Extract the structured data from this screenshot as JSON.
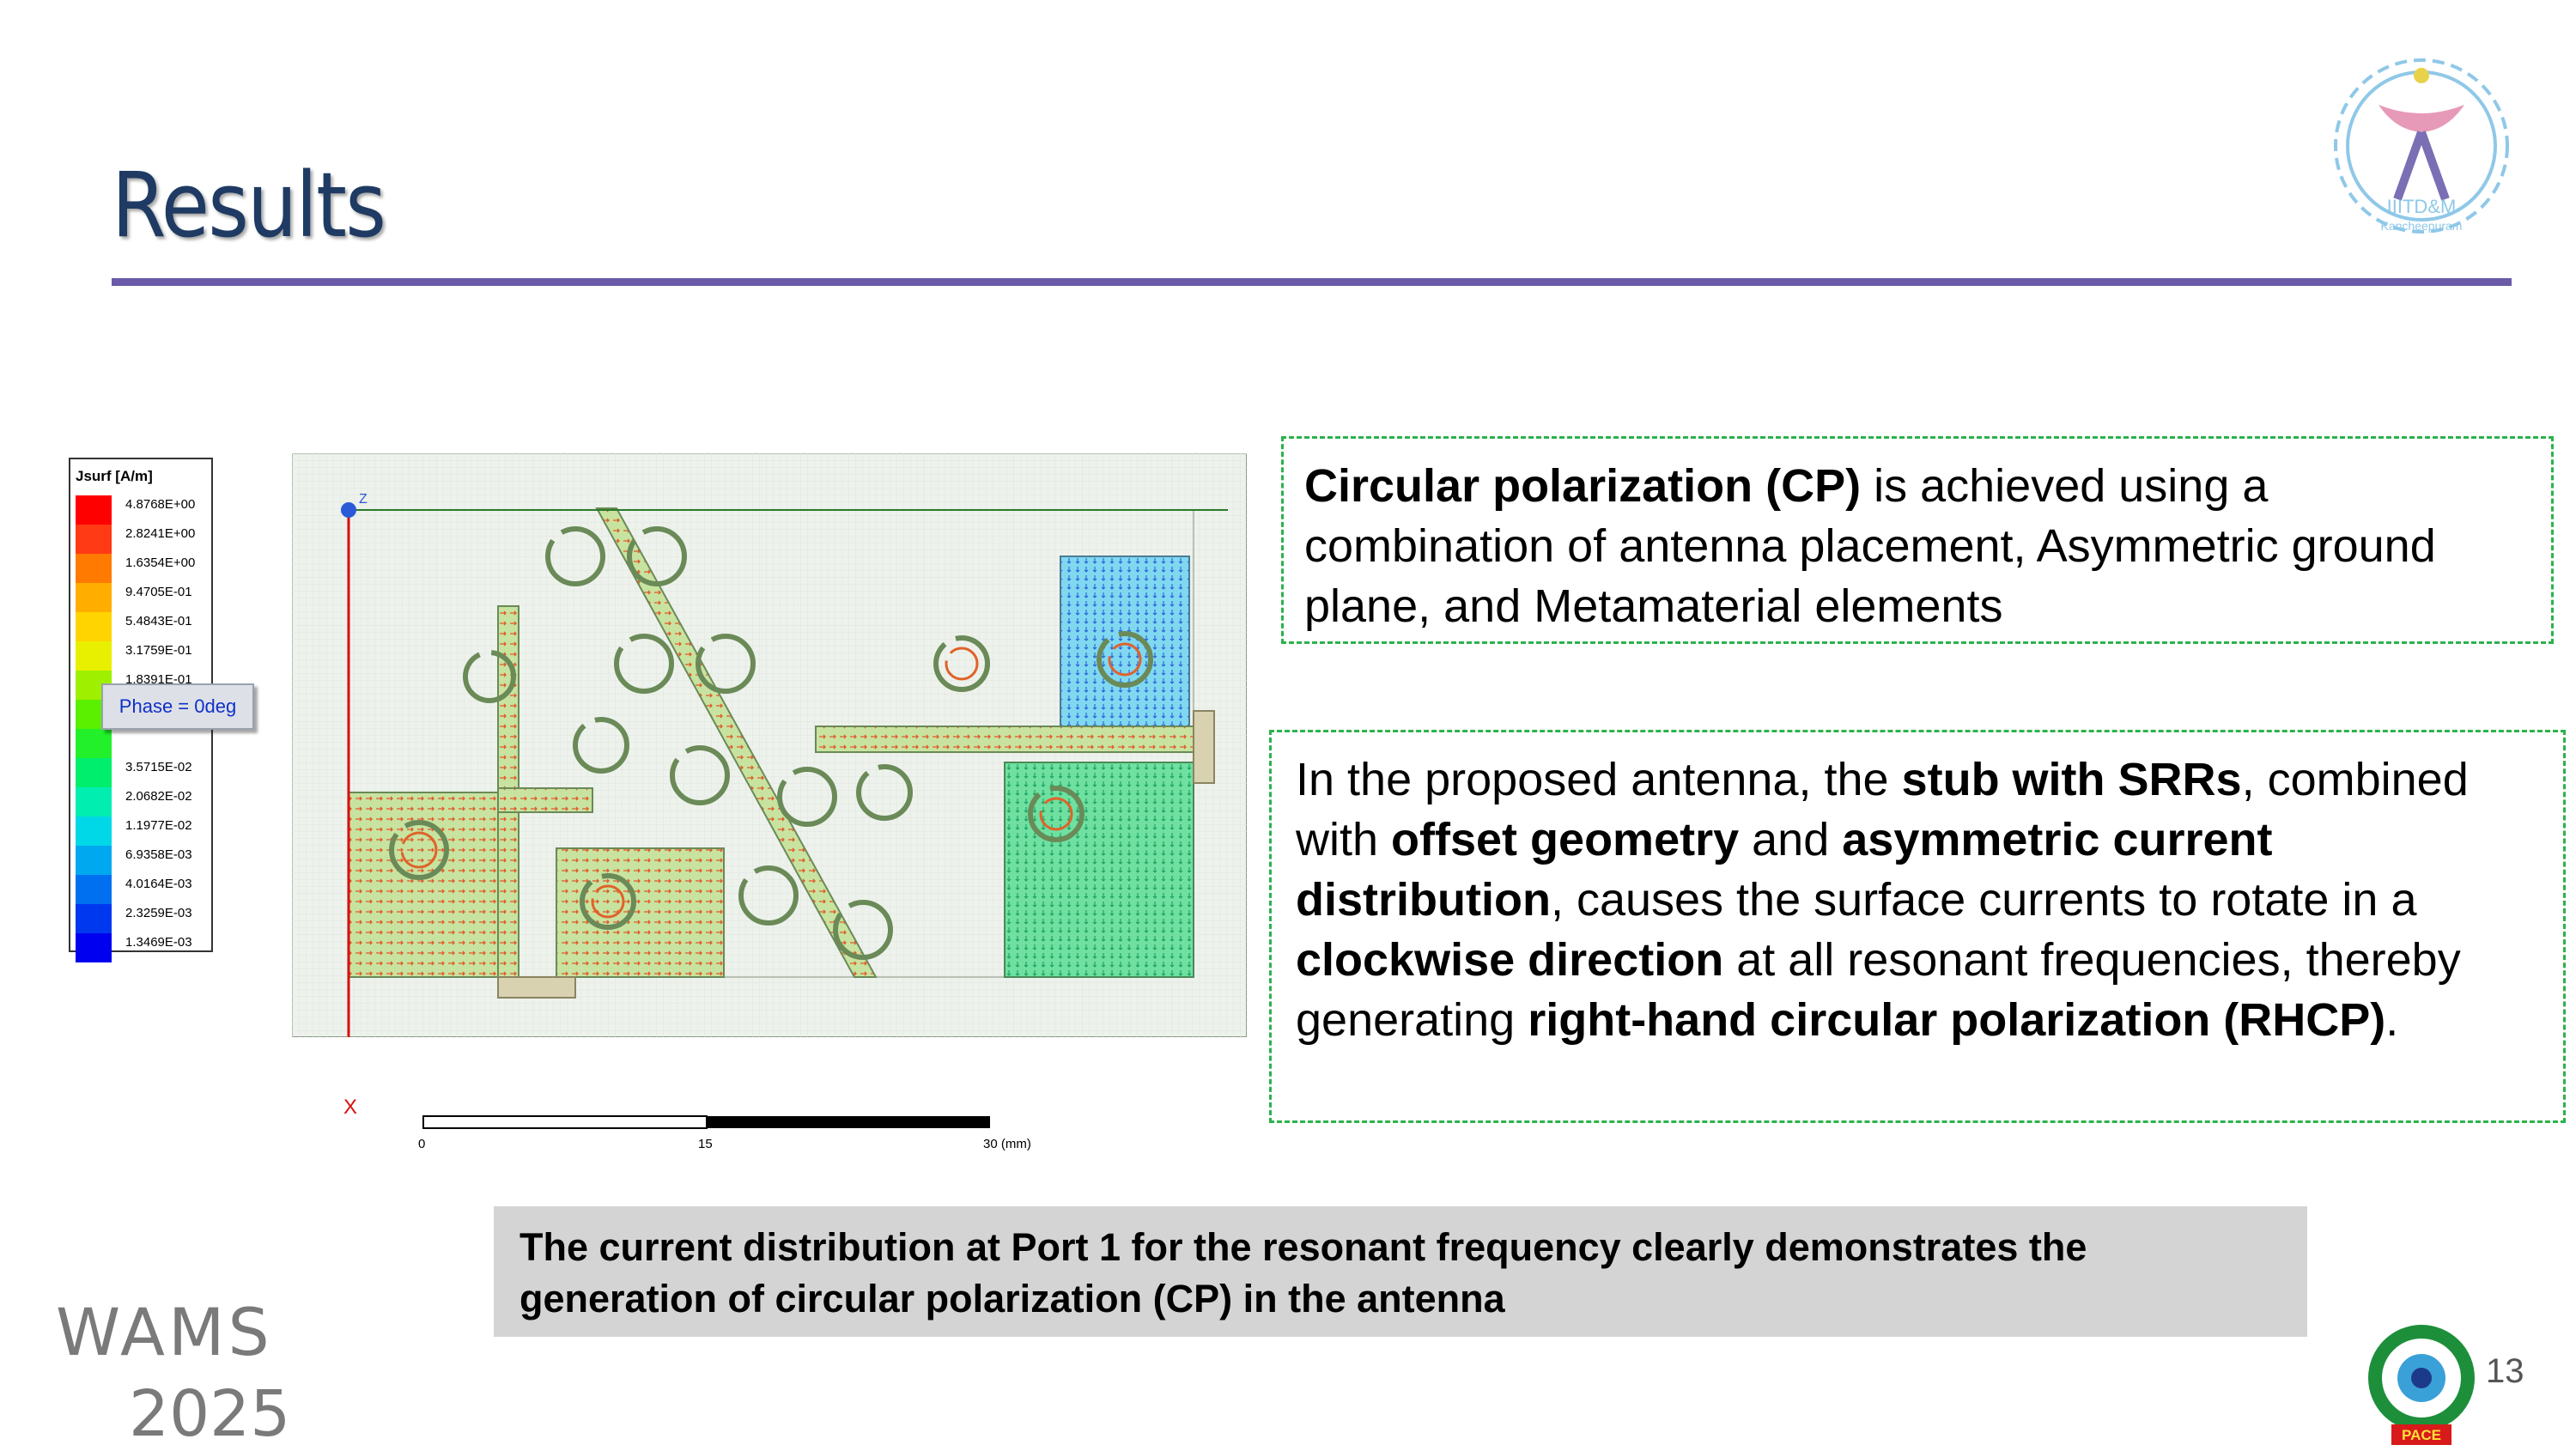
{
  "slide": {
    "title": "Results",
    "number": "13"
  },
  "logos": {
    "institute_text": "IIITD&M",
    "institute_sub": "Kancheepuram",
    "conference_text": "WAMS",
    "conference_year": "2025",
    "pace_text": "PACE"
  },
  "legend": {
    "title": "Jsurf [A/m]",
    "values": [
      "4.8768E+00",
      "2.8241E+00",
      "1.6354E+00",
      "9.4705E-01",
      "5.4843E-01",
      "3.1759E-01",
      "1.8391E-01",
      "",
      "",
      "3.5715E-02",
      "2.0682E-02",
      "1.1977E-02",
      "6.9358E-03",
      "4.0164E-03",
      "2.3259E-03",
      "1.3469E-03"
    ],
    "colors": [
      "#ff0000",
      "#ff3a14",
      "#ff7a00",
      "#ffae00",
      "#ffd400",
      "#e8f000",
      "#9ef000",
      "#5af000",
      "#22f02a",
      "#00ee6e",
      "#00eeb0",
      "#00d8e8",
      "#00a8f0",
      "#0070f0",
      "#0038f0",
      "#0000f0"
    ],
    "phase_badge": "Phase = 0deg"
  },
  "figure": {
    "axis_z": "Z",
    "axis_x": "X",
    "scale_labels": [
      "0",
      "15",
      "30 (mm)"
    ]
  },
  "box1": {
    "bold1": "Circular polarization (CP)",
    "text1": " is achieved using a combination of antenna placement, Asymmetric ground plane, and Metamaterial elements"
  },
  "box2": {
    "t1": "In the proposed antenna, the ",
    "b1": "stub with SRRs",
    "t2": ", combined with ",
    "b2": "offset geometry",
    "t3": " and ",
    "b3": "asymmetric current distribution",
    "t4": ", causes the surface currents to rotate in a ",
    "b4": "clockwise direction",
    "t5": " at all resonant frequencies, thereby generating ",
    "b5": "right-hand circular polarization (RHCP)",
    "t6": "."
  },
  "caption": "The current distribution at Port 1 for the resonant frequency clearly demonstrates the generation of circular polarization (CP) in the antenna"
}
